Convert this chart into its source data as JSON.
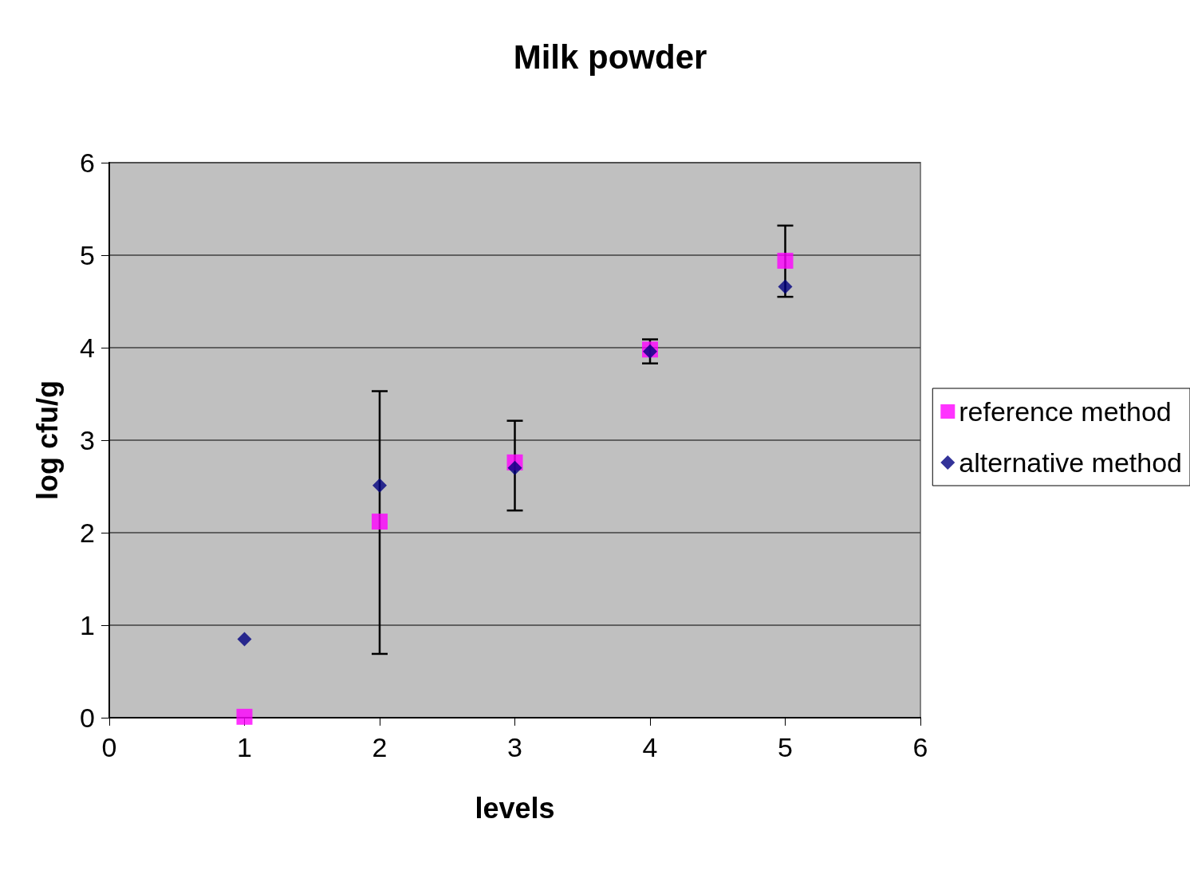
{
  "chart_data": {
    "type": "scatter",
    "title": "Milk powder",
    "xlabel": "levels",
    "ylabel": "log cfu/g",
    "x": [
      1,
      2,
      3,
      4,
      5
    ],
    "series": [
      {
        "name": "reference method",
        "color": "#ff00ff",
        "marker": "square",
        "values": [
          0.01,
          2.12,
          2.76,
          3.98,
          4.94
        ],
        "errors": [
          null,
          [
            0.69,
            3.53
          ],
          [
            2.24,
            3.21
          ],
          [
            3.83,
            4.09
          ],
          [
            4.55,
            5.32
          ]
        ]
      },
      {
        "name": "alternative method",
        "color": "#000080",
        "marker": "diamond",
        "values": [
          0.85,
          2.51,
          2.7,
          3.96,
          4.66
        ]
      }
    ],
    "xlim": [
      0,
      6
    ],
    "xticks": [
      0,
      1,
      2,
      3,
      4,
      5,
      6
    ],
    "ylim": [
      0,
      6
    ],
    "yticks": [
      0,
      1,
      2,
      3,
      4,
      5,
      6
    ],
    "grid": "y",
    "legend": "right"
  }
}
